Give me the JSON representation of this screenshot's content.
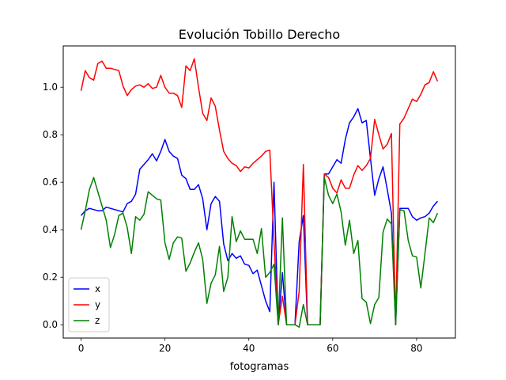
{
  "chart_data": {
    "type": "line",
    "title": "Evolución Tobillo Derecho",
    "xlabel": "fotogramas",
    "ylabel": "",
    "xlim": [
      -4.25,
      89.25
    ],
    "ylim": [
      -0.056,
      1.174
    ],
    "xticks": [
      0,
      20,
      40,
      60,
      80
    ],
    "xtick_labels": [
      "0",
      "20",
      "40",
      "60",
      "80"
    ],
    "yticks": [
      0.0,
      0.2,
      0.4,
      0.6,
      0.8,
      1.0
    ],
    "ytick_labels": [
      "0.0",
      "0.2",
      "0.4",
      "0.6",
      "0.8",
      "1.0"
    ],
    "grid": false,
    "legend_position": "lower-left",
    "x": [
      0,
      1,
      2,
      3,
      4,
      5,
      6,
      7,
      8,
      9,
      10,
      11,
      12,
      13,
      14,
      15,
      16,
      17,
      18,
      19,
      20,
      21,
      22,
      23,
      24,
      25,
      26,
      27,
      28,
      29,
      30,
      31,
      32,
      33,
      34,
      35,
      36,
      37,
      38,
      39,
      40,
      41,
      42,
      43,
      44,
      45,
      46,
      47,
      48,
      49,
      50,
      51,
      52,
      53,
      54,
      55,
      56,
      57,
      58,
      59,
      60,
      61,
      62,
      63,
      64,
      65,
      66,
      67,
      68,
      69,
      70,
      71,
      72,
      73,
      74,
      75,
      76,
      77,
      78,
      79,
      80,
      81,
      82,
      83,
      84,
      85
    ],
    "series": [
      {
        "name": "x",
        "color": "#0000ff",
        "values": [
          0.46,
          0.48,
          0.49,
          0.485,
          0.48,
          0.48,
          0.495,
          0.49,
          0.485,
          0.48,
          0.475,
          0.51,
          0.52,
          0.55,
          0.655,
          0.675,
          0.695,
          0.72,
          0.69,
          0.73,
          0.78,
          0.73,
          0.71,
          0.7,
          0.63,
          0.615,
          0.57,
          0.57,
          0.59,
          0.53,
          0.4,
          0.51,
          0.54,
          0.52,
          0.34,
          0.27,
          0.3,
          0.28,
          0.29,
          0.255,
          0.25,
          0.215,
          0.23,
          0.165,
          0.1,
          0.055,
          0.6,
          0.0,
          0.22,
          0.0,
          0.0,
          0.0,
          0.35,
          0.46,
          0.0,
          0.0,
          0.0,
          0.0,
          0.635,
          0.635,
          0.665,
          0.695,
          0.68,
          0.78,
          0.85,
          0.875,
          0.91,
          0.85,
          0.86,
          0.7,
          0.545,
          0.615,
          0.665,
          0.57,
          0.47,
          0.0,
          0.49,
          0.49,
          0.49,
          0.455,
          0.44,
          0.45,
          0.455,
          0.47,
          0.5,
          0.52
        ]
      },
      {
        "name": "y",
        "color": "#ff0000",
        "values": [
          0.985,
          1.07,
          1.04,
          1.03,
          1.1,
          1.11,
          1.08,
          1.08,
          1.075,
          1.07,
          1.005,
          0.965,
          0.99,
          1.005,
          1.01,
          1.0,
          1.015,
          0.995,
          1.0,
          1.05,
          1.0,
          0.975,
          0.975,
          0.965,
          0.915,
          1.09,
          1.07,
          1.12,
          1.0,
          0.89,
          0.86,
          0.955,
          0.92,
          0.82,
          0.73,
          0.7,
          0.68,
          0.67,
          0.645,
          0.665,
          0.66,
          0.68,
          0.695,
          0.71,
          0.73,
          0.735,
          0.35,
          0.0,
          0.12,
          0.0,
          0.0,
          0.0,
          0.14,
          0.675,
          0.0,
          0.0,
          0.0,
          0.0,
          0.635,
          0.62,
          0.575,
          0.555,
          0.61,
          0.575,
          0.575,
          0.63,
          0.67,
          0.65,
          0.67,
          0.7,
          0.865,
          0.8,
          0.74,
          0.76,
          0.805,
          0.0,
          0.845,
          0.87,
          0.91,
          0.95,
          0.94,
          0.97,
          1.01,
          1.02,
          1.065,
          1.025
        ]
      },
      {
        "name": "z",
        "color": "#008000",
        "values": [
          0.4,
          0.48,
          0.57,
          0.62,
          0.56,
          0.5,
          0.44,
          0.325,
          0.38,
          0.46,
          0.47,
          0.41,
          0.3,
          0.455,
          0.44,
          0.465,
          0.56,
          0.545,
          0.53,
          0.525,
          0.345,
          0.275,
          0.345,
          0.37,
          0.365,
          0.225,
          0.26,
          0.305,
          0.345,
          0.275,
          0.09,
          0.175,
          0.21,
          0.33,
          0.14,
          0.2,
          0.455,
          0.35,
          0.395,
          0.36,
          0.36,
          0.36,
          0.3,
          0.405,
          0.2,
          0.22,
          0.255,
          0.0,
          0.45,
          0.0,
          0.0,
          0.0,
          -0.01,
          0.085,
          0.0,
          0.0,
          0.0,
          0.0,
          0.62,
          0.545,
          0.51,
          0.55,
          0.475,
          0.335,
          0.44,
          0.3,
          0.355,
          0.11,
          0.095,
          0.005,
          0.085,
          0.115,
          0.39,
          0.445,
          0.425,
          0.0,
          0.485,
          0.48,
          0.355,
          0.29,
          0.285,
          0.155,
          0.3,
          0.45,
          0.43,
          0.47
        ]
      }
    ]
  }
}
